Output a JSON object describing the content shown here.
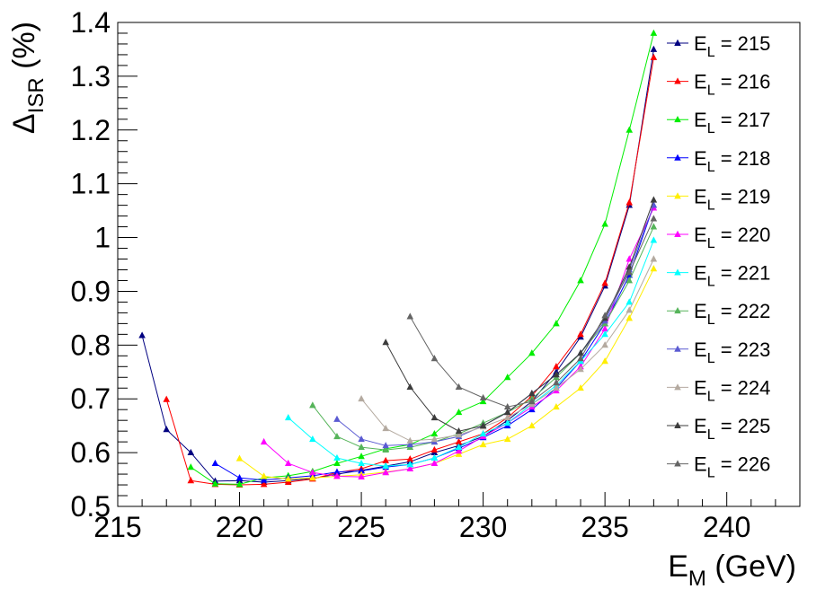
{
  "chart_data": {
    "type": "line",
    "xlabel": "E",
    "xlabel_sub": "M",
    "xlabel_unit": " (GeV)",
    "ylabel": "Δ",
    "ylabel_sub": "ISR",
    "ylabel_unit": " (%)",
    "xlim": [
      215,
      243
    ],
    "ylim": [
      0.5,
      1.4
    ],
    "x_ticks": [
      "215",
      "220",
      "225",
      "230",
      "235",
      "240"
    ],
    "y_ticks": [
      "0.5",
      "0.6",
      "0.7",
      "0.8",
      "0.9",
      "1",
      "1.1",
      "1.2",
      "1.3",
      "1.4"
    ],
    "marker": "triangle",
    "legend_position": "right",
    "series": [
      {
        "name": "E_L = 215",
        "legend_main": "E",
        "legend_sub": "L",
        "legend_rest": " = 215",
        "color": "#000080",
        "x": [
          216,
          217,
          218,
          219,
          220,
          221,
          222,
          223,
          224,
          225,
          226,
          227,
          228,
          229,
          230,
          231,
          232,
          233,
          234,
          235,
          236,
          237
        ],
        "y": [
          0.818,
          0.643,
          0.6,
          0.547,
          0.548,
          0.545,
          0.548,
          0.552,
          0.56,
          0.567,
          0.575,
          0.583,
          0.6,
          0.613,
          0.63,
          0.66,
          0.695,
          0.75,
          0.815,
          0.91,
          1.06,
          1.35
        ]
      },
      {
        "name": "E_L = 216",
        "legend_main": "E",
        "legend_sub": "L",
        "legend_rest": " = 216",
        "color": "#ff0000",
        "x": [
          217,
          218,
          219,
          220,
          221,
          222,
          223,
          224,
          225,
          226,
          227,
          228,
          229,
          230,
          231,
          232,
          233,
          234,
          235,
          236,
          237
        ],
        "y": [
          0.699,
          0.548,
          0.541,
          0.54,
          0.541,
          0.545,
          0.551,
          0.563,
          0.57,
          0.585,
          0.588,
          0.605,
          0.62,
          0.635,
          0.665,
          0.705,
          0.76,
          0.82,
          0.915,
          1.065,
          1.335
        ]
      },
      {
        "name": "E_L = 217",
        "legend_main": "E",
        "legend_sub": "L",
        "legend_rest": " = 217",
        "color": "#00ee00",
        "x": [
          218,
          219,
          220,
          221,
          222,
          223,
          224,
          225,
          226,
          227,
          228,
          229,
          230,
          231,
          232,
          233,
          234,
          235,
          236,
          237
        ],
        "y": [
          0.573,
          0.542,
          0.541,
          0.553,
          0.557,
          0.565,
          0.58,
          0.593,
          0.607,
          0.615,
          0.635,
          0.675,
          0.695,
          0.74,
          0.785,
          0.84,
          0.92,
          1.025,
          1.2,
          1.38
        ]
      },
      {
        "name": "E_L = 218",
        "legend_main": "E",
        "legend_sub": "L",
        "legend_rest": " = 218",
        "color": "#0000ff",
        "x": [
          219,
          220,
          221,
          222,
          223,
          224,
          225,
          226,
          227,
          228,
          229,
          230,
          231,
          232,
          233,
          234,
          235,
          236,
          237
        ],
        "y": [
          0.58,
          0.553,
          0.549,
          0.553,
          0.557,
          0.564,
          0.566,
          0.573,
          0.578,
          0.59,
          0.608,
          0.628,
          0.65,
          0.68,
          0.72,
          0.77,
          0.84,
          0.93,
          1.06
        ]
      },
      {
        "name": "E_L = 219",
        "legend_main": "E",
        "legend_sub": "L",
        "legend_rest": " = 219",
        "color": "#ffee00",
        "x": [
          220,
          221,
          222,
          223,
          224,
          225,
          226,
          227,
          228,
          229,
          230,
          231,
          232,
          233,
          234,
          235,
          236,
          237
        ],
        "y": [
          0.589,
          0.556,
          0.551,
          0.553,
          0.556,
          0.559,
          0.564,
          0.57,
          0.58,
          0.597,
          0.615,
          0.625,
          0.65,
          0.685,
          0.72,
          0.77,
          0.85,
          0.942
        ]
      },
      {
        "name": "E_L = 220",
        "legend_main": "E",
        "legend_sub": "L",
        "legend_rest": " = 220",
        "color": "#ff00ff",
        "x": [
          221,
          222,
          223,
          224,
          225,
          226,
          227,
          228,
          229,
          230,
          231,
          232,
          233,
          234,
          235,
          236,
          237
        ],
        "y": [
          0.62,
          0.58,
          0.563,
          0.556,
          0.555,
          0.563,
          0.57,
          0.58,
          0.603,
          0.63,
          0.655,
          0.685,
          0.715,
          0.76,
          0.83,
          0.96,
          1.055
        ]
      },
      {
        "name": "E_L = 221",
        "legend_main": "E",
        "legend_sub": "L",
        "legend_rest": " = 221",
        "color": "#00ffff",
        "x": [
          222,
          223,
          224,
          225,
          226,
          227,
          228,
          229,
          230,
          231,
          232,
          233,
          234,
          235,
          236,
          237
        ],
        "y": [
          0.665,
          0.625,
          0.59,
          0.58,
          0.575,
          0.578,
          0.59,
          0.61,
          0.635,
          0.655,
          0.69,
          0.725,
          0.77,
          0.82,
          0.88,
          0.995
        ]
      },
      {
        "name": "E_L = 222",
        "legend_main": "E",
        "legend_sub": "L",
        "legend_rest": " = 222",
        "color": "#56b45a",
        "x": [
          223,
          224,
          225,
          226,
          227,
          228,
          229,
          230,
          231,
          232,
          233,
          234,
          235,
          236,
          237
        ],
        "y": [
          0.688,
          0.63,
          0.61,
          0.605,
          0.61,
          0.62,
          0.635,
          0.655,
          0.675,
          0.7,
          0.74,
          0.785,
          0.84,
          0.92,
          1.02
        ]
      },
      {
        "name": "E_L = 223",
        "legend_main": "E",
        "legend_sub": "L",
        "legend_rest": " = 223",
        "color": "#5a5ad2",
        "x": [
          224,
          225,
          226,
          227,
          228,
          229,
          230,
          231,
          232,
          233,
          234,
          235,
          236,
          237
        ],
        "y": [
          0.662,
          0.625,
          0.613,
          0.615,
          0.62,
          0.63,
          0.65,
          0.675,
          0.71,
          0.745,
          0.785,
          0.845,
          0.94,
          1.06
        ]
      },
      {
        "name": "E_L = 224",
        "legend_main": "E",
        "legend_sub": "L",
        "legend_rest": " = 224",
        "color": "#b4aaa0",
        "x": [
          225,
          226,
          227,
          228,
          229,
          230,
          231,
          232,
          233,
          234,
          235,
          236,
          237
        ],
        "y": [
          0.7,
          0.645,
          0.622,
          0.625,
          0.633,
          0.648,
          0.665,
          0.69,
          0.72,
          0.755,
          0.8,
          0.865,
          0.96
        ]
      },
      {
        "name": "E_L = 225",
        "legend_main": "E",
        "legend_sub": "L",
        "legend_rest": " = 225",
        "color": "#3c3c3c",
        "x": [
          226,
          227,
          228,
          229,
          230,
          231,
          232,
          233,
          234,
          235,
          236,
          237
        ],
        "y": [
          0.805,
          0.722,
          0.665,
          0.64,
          0.65,
          0.675,
          0.71,
          0.745,
          0.785,
          0.85,
          0.945,
          1.07
        ]
      },
      {
        "name": "E_L = 226",
        "legend_main": "E",
        "legend_sub": "L",
        "legend_rest": " = 226",
        "color": "#646464",
        "x": [
          227,
          228,
          229,
          230,
          231,
          232,
          233,
          234,
          235,
          236,
          237
        ],
        "y": [
          0.853,
          0.775,
          0.722,
          0.702,
          0.685,
          0.695,
          0.73,
          0.775,
          0.855,
          0.935,
          1.035
        ]
      }
    ]
  }
}
